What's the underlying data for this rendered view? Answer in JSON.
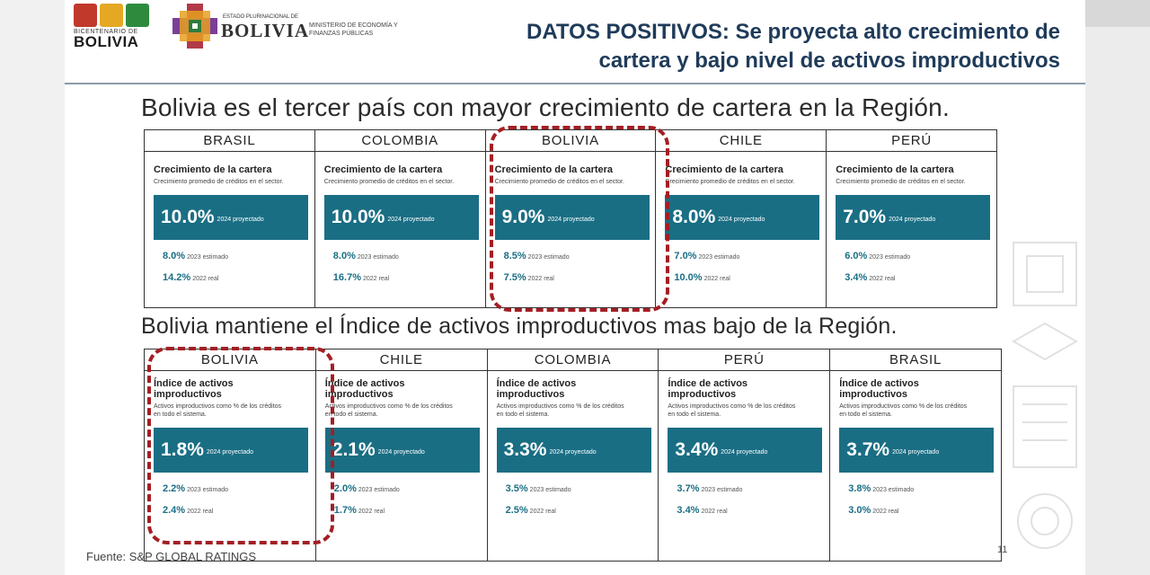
{
  "logos": {
    "bicentenario_small": "BICENTENARIO DE",
    "bicentenario_big": "BOLIVIA",
    "estado_small": "ESTADO PLURINACIONAL DE",
    "estado_big": "BOLIVIA",
    "ministerio": "MINISTERIO DE ECONOMÍA Y FINANZAS PÚBLICAS"
  },
  "header": {
    "title_line1": "DATOS POSITIVOS: Se proyecta alto crecimiento de",
    "title_line2": "cartera y bajo nivel de activos improductivos"
  },
  "section1": {
    "subtitle": "Bolivia es el tercer país con mayor crecimiento de cartera en la Región.",
    "countries": [
      "BRASIL",
      "COLOMBIA",
      "BOLIVIA",
      "CHILE",
      "PERÚ"
    ],
    "card_title": "Crecimiento de la cartera",
    "card_desc": "Crecimiento promedio de créditos en el sector.",
    "cards": [
      {
        "main": "10.0%",
        "main_note": "2024 proyectado",
        "l1": "8.0%",
        "l1_note": "2023 estimado",
        "l2": "14.2%",
        "l2_note": "2022 real"
      },
      {
        "main": "10.0%",
        "main_note": "2024 proyectado",
        "l1": "8.0%",
        "l1_note": "2023 estimado",
        "l2": "16.7%",
        "l2_note": "2022 real"
      },
      {
        "main": "9.0%",
        "main_note": "2024 proyectado",
        "l1": "8.5%",
        "l1_note": "2023 estimado",
        "l2": "7.5%",
        "l2_note": "2022 real"
      },
      {
        "main": "8.0%",
        "main_note": "2024 proyectado",
        "l1": "7.0%",
        "l1_note": "2023 estimado",
        "l2": "10.0%",
        "l2_note": "2022 real"
      },
      {
        "main": "7.0%",
        "main_note": "2024 proyectado",
        "l1": "6.0%",
        "l1_note": "2023 estimado",
        "l2": "3.4%",
        "l2_note": "2022 real"
      }
    ]
  },
  "section2": {
    "subtitle": "Bolivia mantiene el Índice de activos improductivos mas bajo de la Región.",
    "countries": [
      "BOLIVIA",
      "CHILE",
      "COLOMBIA",
      "PERÚ",
      "BRASIL"
    ],
    "card_title_1": "Índice de activos",
    "card_title_2": "improductivos",
    "card_desc": "Activos improductivos como % de los créditos en todo el sistema.",
    "cards": [
      {
        "main": "1.8%",
        "main_note": "2024 proyectado",
        "l1": "2.2%",
        "l1_note": "2023 estimado",
        "l2": "2.4%",
        "l2_note": "2022 real"
      },
      {
        "main": "2.1%",
        "main_note": "2024 proyectado",
        "l1": "2.0%",
        "l1_note": "2023 estimado",
        "l2": "1.7%",
        "l2_note": "2022 real"
      },
      {
        "main": "3.3%",
        "main_note": "2024 proyectado",
        "l1": "3.5%",
        "l1_note": "2023 estimado",
        "l2": "2.5%",
        "l2_note": "2022 real"
      },
      {
        "main": "3.4%",
        "main_note": "2024 proyectado",
        "l1": "3.7%",
        "l1_note": "2023 estimado",
        "l2": "3.4%",
        "l2_note": "2022 real"
      },
      {
        "main": "3.7%",
        "main_note": "2024 proyectado",
        "l1": "3.8%",
        "l1_note": "2023 estimado",
        "l2": "3.0%",
        "l2_note": "2022 real"
      }
    ]
  },
  "footer": {
    "source": "Fuente: S&P GLOBAL RATINGS",
    "page": "11"
  },
  "colors": {
    "title": "#1f3b5a",
    "accent_box": "#1a6e84",
    "highlight": "#a31f24"
  }
}
